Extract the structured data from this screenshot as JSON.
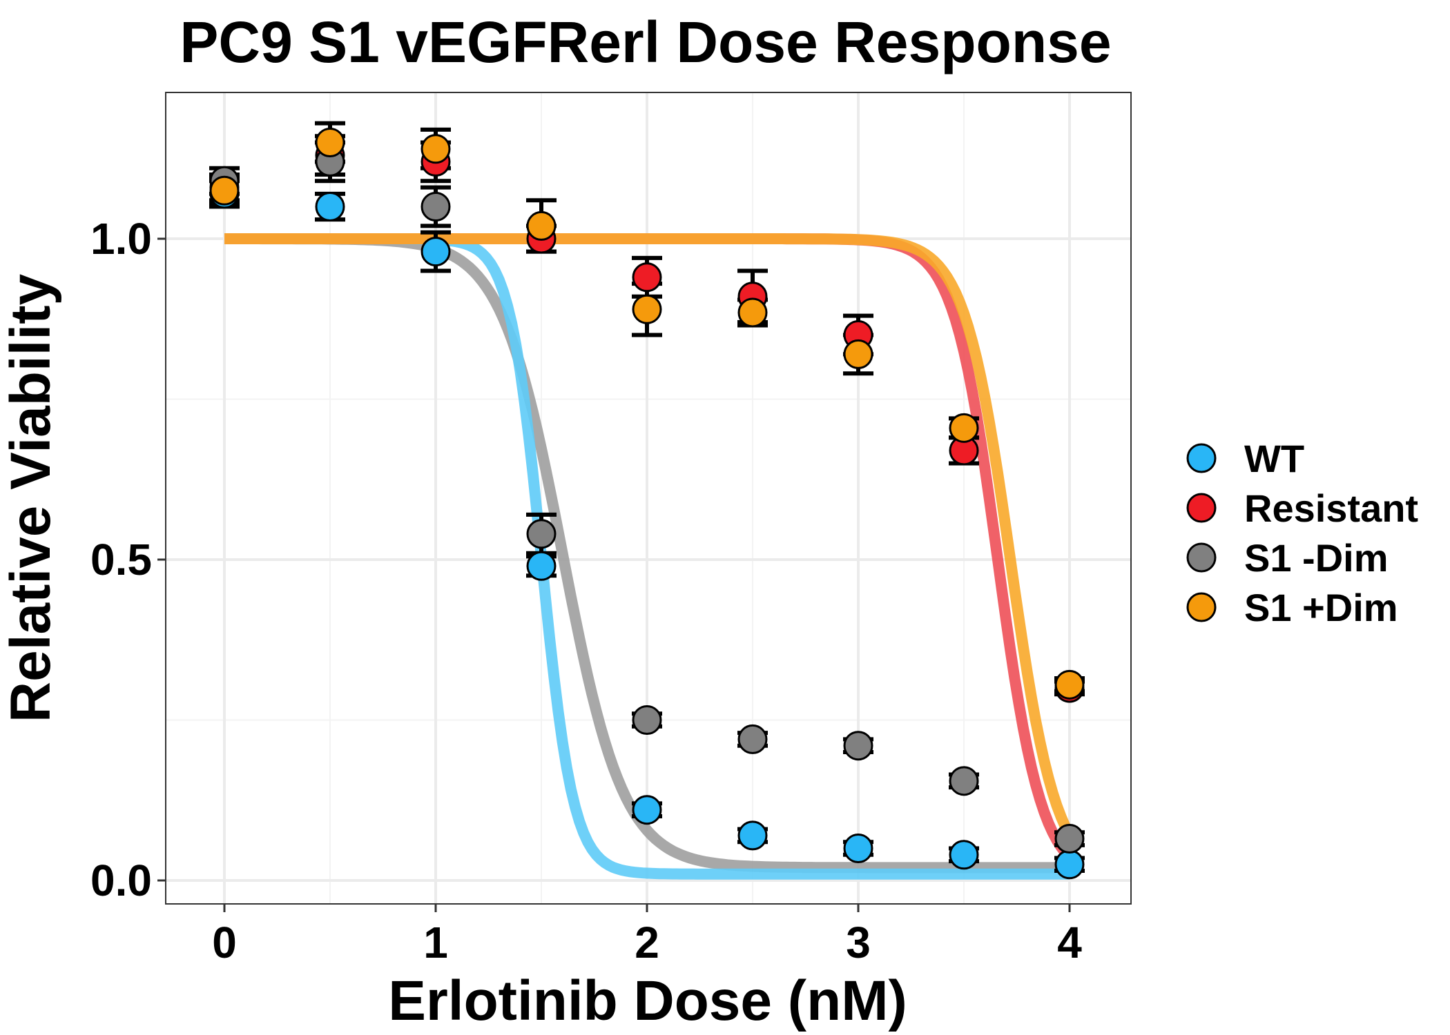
{
  "chart_data": {
    "type": "scatter",
    "title": "PC9 S1 vEGFRerl Dose Response",
    "xlabel": "Erlotinib Dose (nM)",
    "ylabel": "Relative Viability",
    "xlim": [
      -0.28,
      4.28
    ],
    "ylim": [
      -0.035,
      1.23
    ],
    "x_ticks": [
      0,
      1,
      2,
      3,
      4
    ],
    "x_tick_labels": [
      "0",
      "1",
      "2",
      "3",
      "4"
    ],
    "y_ticks": [
      0,
      0.5,
      1.0
    ],
    "y_tick_labels": [
      "0.0",
      "0.5",
      "1.0"
    ],
    "y_minor_ticks": [
      0.25,
      0.75
    ],
    "x_minor_ticks": [
      0.5,
      1.5,
      2.5,
      3.5
    ],
    "grid": true,
    "legend_position": "right",
    "series": [
      {
        "name": "WT",
        "color": "#29b6f6",
        "line_color": "#5ecbf7",
        "x": [
          0,
          0.5,
          1,
          1.5,
          2,
          2.5,
          3,
          3.5,
          4
        ],
        "y": [
          1.07,
          1.05,
          0.98,
          0.49,
          0.11,
          0.07,
          0.05,
          0.04,
          0.025
        ],
        "err": [
          0.02,
          0.02,
          0.03,
          0.015,
          0.01,
          0.01,
          0.01,
          0.01,
          0.01
        ],
        "fit": {
          "top": 1.0,
          "bottom": 0.01,
          "ec50_log": 1.5,
          "hill": 5.8
        }
      },
      {
        "name": "Resistant",
        "color": "#ee1c25",
        "line_color": "#ee5058",
        "x": [
          0,
          0.5,
          1,
          1.5,
          2,
          2.5,
          3,
          3.5,
          4
        ],
        "y": [
          1.08,
          1.13,
          1.12,
          1.0,
          0.94,
          0.91,
          0.85,
          0.67,
          0.3
        ],
        "err": [
          0.02,
          0.03,
          0.03,
          0.02,
          0.03,
          0.04,
          0.03,
          0.02,
          0.01
        ],
        "fit": {
          "top": 1.0,
          "bottom": 0.0,
          "ec50_log": 3.66,
          "hill": 4.2
        }
      },
      {
        "name": "S1 -Dim",
        "color": "#808080",
        "line_color": "#9e9e9e",
        "x": [
          0,
          0.5,
          1,
          1.5,
          2,
          2.5,
          3,
          3.5,
          4
        ],
        "y": [
          1.09,
          1.12,
          1.05,
          0.54,
          0.25,
          0.22,
          0.21,
          0.155,
          0.065
        ],
        "err": [
          0.02,
          0.03,
          0.03,
          0.03,
          0.01,
          0.01,
          0.01,
          0.01,
          0.01
        ],
        "fit": {
          "top": 1.0,
          "bottom": 0.02,
          "ec50_log": 1.6,
          "hill": 3.0
        }
      },
      {
        "name": "S1 +Dim",
        "color": "#f59a0c",
        "line_color": "#f8a82a",
        "x": [
          0,
          0.5,
          1,
          1.5,
          2,
          2.5,
          3,
          3.5,
          4
        ],
        "y": [
          1.075,
          1.15,
          1.14,
          1.02,
          0.89,
          0.885,
          0.82,
          0.705,
          0.305
        ],
        "err": [
          0.02,
          0.03,
          0.03,
          0.04,
          0.04,
          0.02,
          0.03,
          0.015,
          0.01
        ],
        "fit": {
          "top": 1.0,
          "bottom": 0.0,
          "ec50_log": 3.72,
          "hill": 4.0
        }
      }
    ]
  }
}
